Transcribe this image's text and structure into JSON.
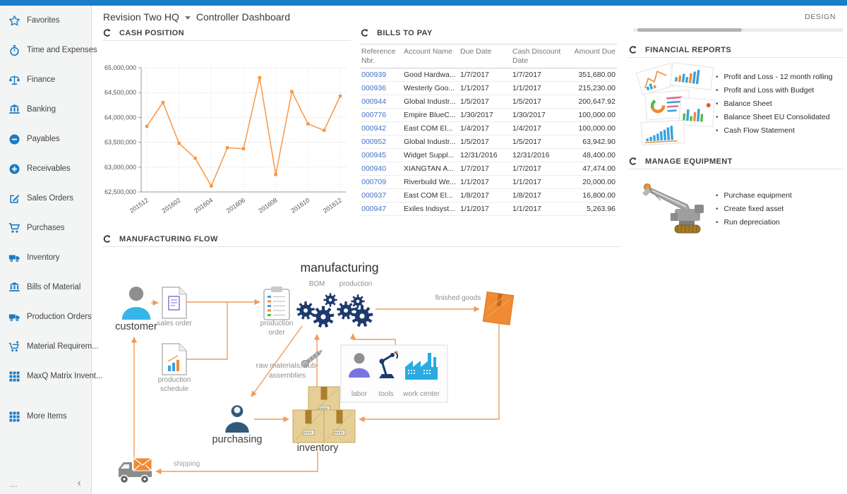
{
  "header": {
    "company": "Revision Two HQ",
    "page_title": "Controller Dashboard",
    "design_label": "DESIGN"
  },
  "sidebar": {
    "items": [
      {
        "id": "favorites",
        "icon": "star-icon",
        "label": "Favorites"
      },
      {
        "id": "time-and-expenses",
        "icon": "stopwatch-icon",
        "label": "Time and Expenses"
      },
      {
        "id": "finance",
        "icon": "scales-icon",
        "label": "Finance"
      },
      {
        "id": "banking",
        "icon": "bank-icon",
        "label": "Banking"
      },
      {
        "id": "payables",
        "icon": "minus-circle-icon",
        "label": "Payables"
      },
      {
        "id": "receivables",
        "icon": "plus-circle-icon",
        "label": "Receivables"
      },
      {
        "id": "sales-orders",
        "icon": "edit-icon",
        "label": "Sales Orders"
      },
      {
        "id": "purchases",
        "icon": "cart-icon",
        "label": "Purchases"
      },
      {
        "id": "inventory",
        "icon": "truck-icon",
        "label": "Inventory"
      },
      {
        "id": "bills-of-material",
        "icon": "bank-icon",
        "label": "Bills of Material"
      },
      {
        "id": "production-orders",
        "icon": "truck-icon",
        "label": "Production Orders"
      },
      {
        "id": "material-requirements",
        "icon": "cart-up-icon",
        "label": "Material Requirem..."
      },
      {
        "id": "maxq-matrix-inventory",
        "icon": "grid-icon",
        "label": "MaxQ Matrix Invent..."
      },
      {
        "id": "more-items",
        "icon": "grid-icon",
        "label": "More Items",
        "gap": true
      }
    ],
    "footer": {
      "more": "...",
      "collapse": "‹"
    }
  },
  "cash_position": {
    "title": "CASH POSITION"
  },
  "bills_to_pay": {
    "title": "BILLS TO PAY",
    "columns": [
      "Reference Nbr.",
      "Account Name",
      "Due Date",
      "Cash Discount Date",
      "Amount Due"
    ],
    "rows": [
      [
        "000939",
        "Good Hardwa...",
        "1/7/2017",
        "1/7/2017",
        "351,680.00"
      ],
      [
        "000936",
        "Westerly Goo...",
        "1/1/2017",
        "1/1/2017",
        "215,230.00"
      ],
      [
        "000944",
        "Global Industr...",
        "1/5/2017",
        "1/5/2017",
        "200,647.92"
      ],
      [
        "000776",
        "Empire BlueC...",
        "1/30/2017",
        "1/30/2017",
        "100,000.00"
      ],
      [
        "000942",
        "East COM El...",
        "1/4/2017",
        "1/4/2017",
        "100,000.00"
      ],
      [
        "000952",
        "Global Industr...",
        "1/5/2017",
        "1/5/2017",
        "63,942.90"
      ],
      [
        "000945",
        "Widget Suppl...",
        "12/31/2016",
        "12/31/2016",
        "48,400.00"
      ],
      [
        "000940",
        "XIANGTAN A...",
        "1/7/2017",
        "1/7/2017",
        "47,474.00"
      ],
      [
        "000709",
        "Riverbuild We...",
        "1/1/2017",
        "1/1/2017",
        "20,000.00"
      ],
      [
        "000937",
        "East COM El...",
        "1/8/2017",
        "1/8/2017",
        "16,800.00"
      ],
      [
        "000947",
        "Exiles Indsyst...",
        "1/1/2017",
        "1/1/2017",
        "5,263.96"
      ]
    ]
  },
  "financial_reports": {
    "title": "FINANCIAL REPORTS",
    "links": [
      "Profit and Loss - 12 month rolling",
      "Profit and Loss with Budget",
      "Balance Sheet",
      "Balance Sheet EU Consolidated",
      "Cash Flow Statement"
    ]
  },
  "manage_equipment": {
    "title": "MANAGE EQUIPMENT",
    "links": [
      "Purchase equipment",
      "Create fixed asset",
      "Run depreciation"
    ]
  },
  "manufacturing_flow": {
    "title": "MANUFACTURING FLOW",
    "labels": {
      "diagram_title": "manufacturing",
      "customer": "customer",
      "sales_order": "sales order",
      "production_schedule": "production schedule",
      "production_order": "production order",
      "bom": "BOM",
      "production": "production",
      "finished_goods": "finished goods",
      "raw_materials": "raw materials, sub-assemblies",
      "labor": "labor",
      "tools": "tools",
      "work_center": "work center",
      "purchasing": "purchasing",
      "inventory": "inventory",
      "shipping": "shipping"
    }
  },
  "chart_data": {
    "type": "line",
    "title": "CASH POSITION",
    "x": [
      "201512",
      "201601",
      "201602",
      "201603",
      "201604",
      "201605",
      "201606",
      "201607",
      "201608",
      "201609",
      "201610",
      "201611",
      "201612"
    ],
    "x_tick_labels_shown": [
      "201512",
      "201602",
      "201604",
      "201606",
      "201608",
      "201610",
      "201612"
    ],
    "values": [
      63820000,
      64300000,
      63480000,
      63180000,
      62620000,
      63390000,
      63370000,
      64800000,
      62850000,
      64520000,
      63870000,
      63740000,
      64430000
    ],
    "ylim": [
      62500000,
      65000000
    ],
    "ytick_step": 500000,
    "xlabel": "",
    "ylabel": "",
    "grid": true,
    "legend": false,
    "line_color": "#f79646"
  },
  "colors": {
    "topbar": "#1a7dc8",
    "accent_blue": "#1b7ac2",
    "link_blue": "#4272c8",
    "chart_orange": "#f79646",
    "arrow_orange": "#f19b59",
    "gear_navy": "#1d3a6d",
    "cyan": "#29abe2"
  }
}
